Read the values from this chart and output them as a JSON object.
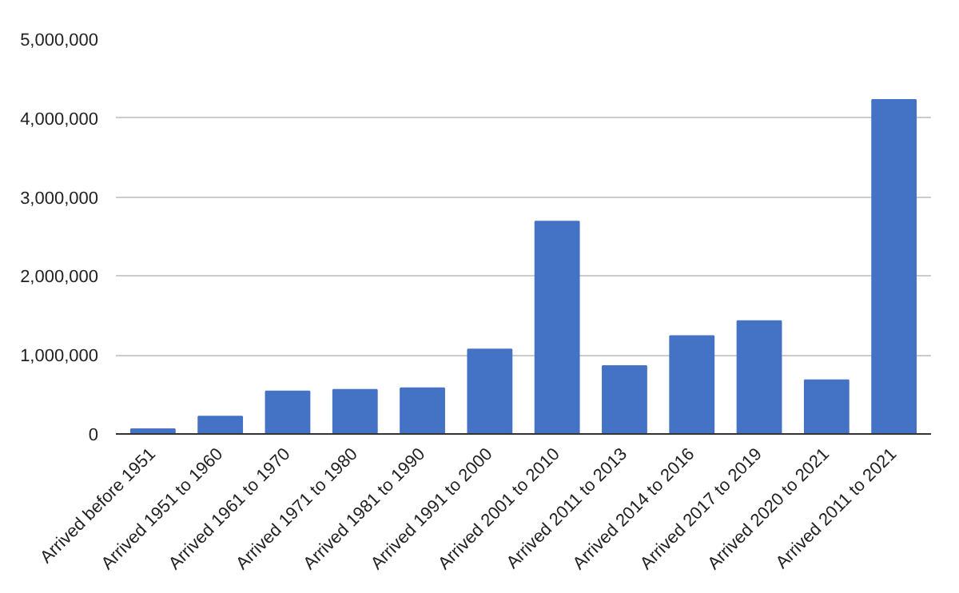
{
  "chart_data": {
    "type": "bar",
    "categories": [
      "Arrived before 1951",
      "Arrived 1951 to 1960",
      "Arrived 1961 to 1970",
      "Arrived 1971 to 1980",
      "Arrived 1981 to 1990",
      "Arrived 1991 to 2000",
      "Arrived 2001 to 2010",
      "Arrived 2011 to 2013",
      "Arrived 2014 to 2016",
      "Arrived 2017 to 2019",
      "Arrived 2020 to 2021",
      "Arrived 2011 to 2021"
    ],
    "values": [
      60000,
      220000,
      540000,
      560000,
      580000,
      1070000,
      2690000,
      860000,
      1240000,
      1430000,
      680000,
      4230000
    ],
    "color": "#4472c4",
    "ylim": [
      0,
      5000000
    ],
    "yticks": [
      {
        "value": 0,
        "label": "0"
      },
      {
        "value": 1000000,
        "label": "1,000,000"
      },
      {
        "value": 2000000,
        "label": "2,000,000"
      },
      {
        "value": 3000000,
        "label": "3,000,000"
      },
      {
        "value": 4000000,
        "label": "4,000,000"
      },
      {
        "value": 5000000,
        "label": "5,000,000"
      }
    ],
    "grid": "y"
  }
}
